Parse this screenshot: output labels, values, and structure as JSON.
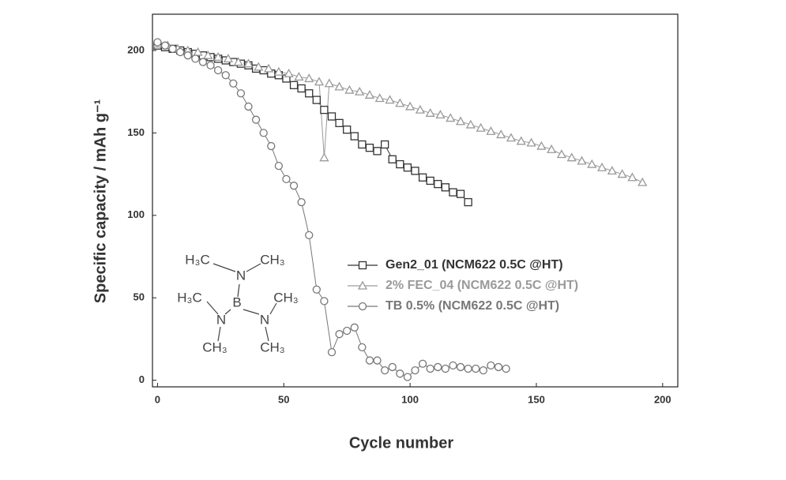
{
  "chart_data": {
    "type": "scatter",
    "x_label": "Cycle number",
    "y_label": "Specific capacity / mAh g⁻¹",
    "xlim": [
      -2,
      206
    ],
    "ylim": [
      -4,
      222
    ],
    "xticks": [
      0,
      50,
      100,
      150,
      200
    ],
    "yticks": [
      0,
      50,
      100,
      150,
      200
    ],
    "series": [
      {
        "name": "Gen2_01 (NCM622 0.5C @HT)",
        "color": "#333333",
        "marker": "square",
        "x": [
          0,
          3,
          6,
          9,
          12,
          15,
          18,
          21,
          24,
          27,
          30,
          33,
          36,
          39,
          42,
          45,
          48,
          51,
          54,
          57,
          60,
          63,
          66,
          69,
          72,
          75,
          78,
          81,
          84,
          87,
          90,
          93,
          96,
          99,
          102,
          105,
          108,
          111,
          114,
          117,
          120,
          123
        ],
        "values": [
          203,
          202,
          201,
          200,
          199,
          198,
          197,
          196,
          195,
          194,
          193,
          192,
          191,
          189,
          188,
          186,
          185,
          183,
          179,
          177,
          174,
          170,
          164,
          160,
          156,
          152,
          148,
          143,
          141,
          139,
          143,
          134,
          131,
          129,
          127,
          123,
          121,
          119,
          117,
          114,
          113,
          108
        ]
      },
      {
        "name": "2% FEC_04 (NCM622 0.5C @HT)",
        "color": "#9a9a9a",
        "marker": "triangle",
        "x": [
          0,
          4,
          8,
          12,
          16,
          20,
          24,
          28,
          32,
          36,
          40,
          44,
          48,
          52,
          56,
          60,
          64,
          66,
          68,
          72,
          76,
          80,
          84,
          88,
          92,
          96,
          100,
          104,
          108,
          112,
          116,
          120,
          124,
          128,
          132,
          136,
          140,
          144,
          148,
          152,
          156,
          160,
          164,
          168,
          172,
          176,
          180,
          184,
          188,
          192
        ],
        "values": [
          204,
          203,
          201,
          200,
          199,
          197,
          196,
          195,
          193,
          192,
          190,
          189,
          187,
          186,
          184,
          183,
          181,
          135,
          180,
          178,
          176,
          175,
          173,
          171,
          170,
          168,
          166,
          164,
          162,
          161,
          159,
          157,
          155,
          153,
          151,
          149,
          147,
          145,
          144,
          142,
          140,
          137,
          135,
          133,
          131,
          129,
          127,
          125,
          123,
          120
        ]
      },
      {
        "name": "TB 0.5% (NCM622 0.5C @HT)",
        "color": "#777777",
        "marker": "circle",
        "x": [
          0,
          3,
          6,
          9,
          12,
          15,
          18,
          21,
          24,
          27,
          30,
          33,
          36,
          39,
          42,
          45,
          48,
          51,
          54,
          57,
          60,
          63,
          66,
          69,
          72,
          75,
          78,
          81,
          84,
          87,
          90,
          93,
          96,
          99,
          102,
          105,
          108,
          111,
          114,
          117,
          120,
          123,
          126,
          129,
          132,
          135,
          138
        ],
        "values": [
          205,
          203,
          201,
          199,
          197,
          195,
          193,
          191,
          188,
          185,
          180,
          174,
          166,
          158,
          150,
          142,
          130,
          122,
          118,
          108,
          88,
          55,
          48,
          17,
          28,
          30,
          32,
          20,
          12,
          12,
          6,
          8,
          4,
          2,
          6,
          10,
          7,
          8,
          7,
          9,
          8,
          7,
          7,
          6,
          9,
          8,
          7
        ]
      }
    ],
    "annotations": {
      "molecule": [
        "H₃C",
        "N",
        "CH₃",
        "B",
        "H₃C",
        "N",
        "N",
        "CH₃",
        "CH₃",
        "CH₃"
      ]
    }
  }
}
